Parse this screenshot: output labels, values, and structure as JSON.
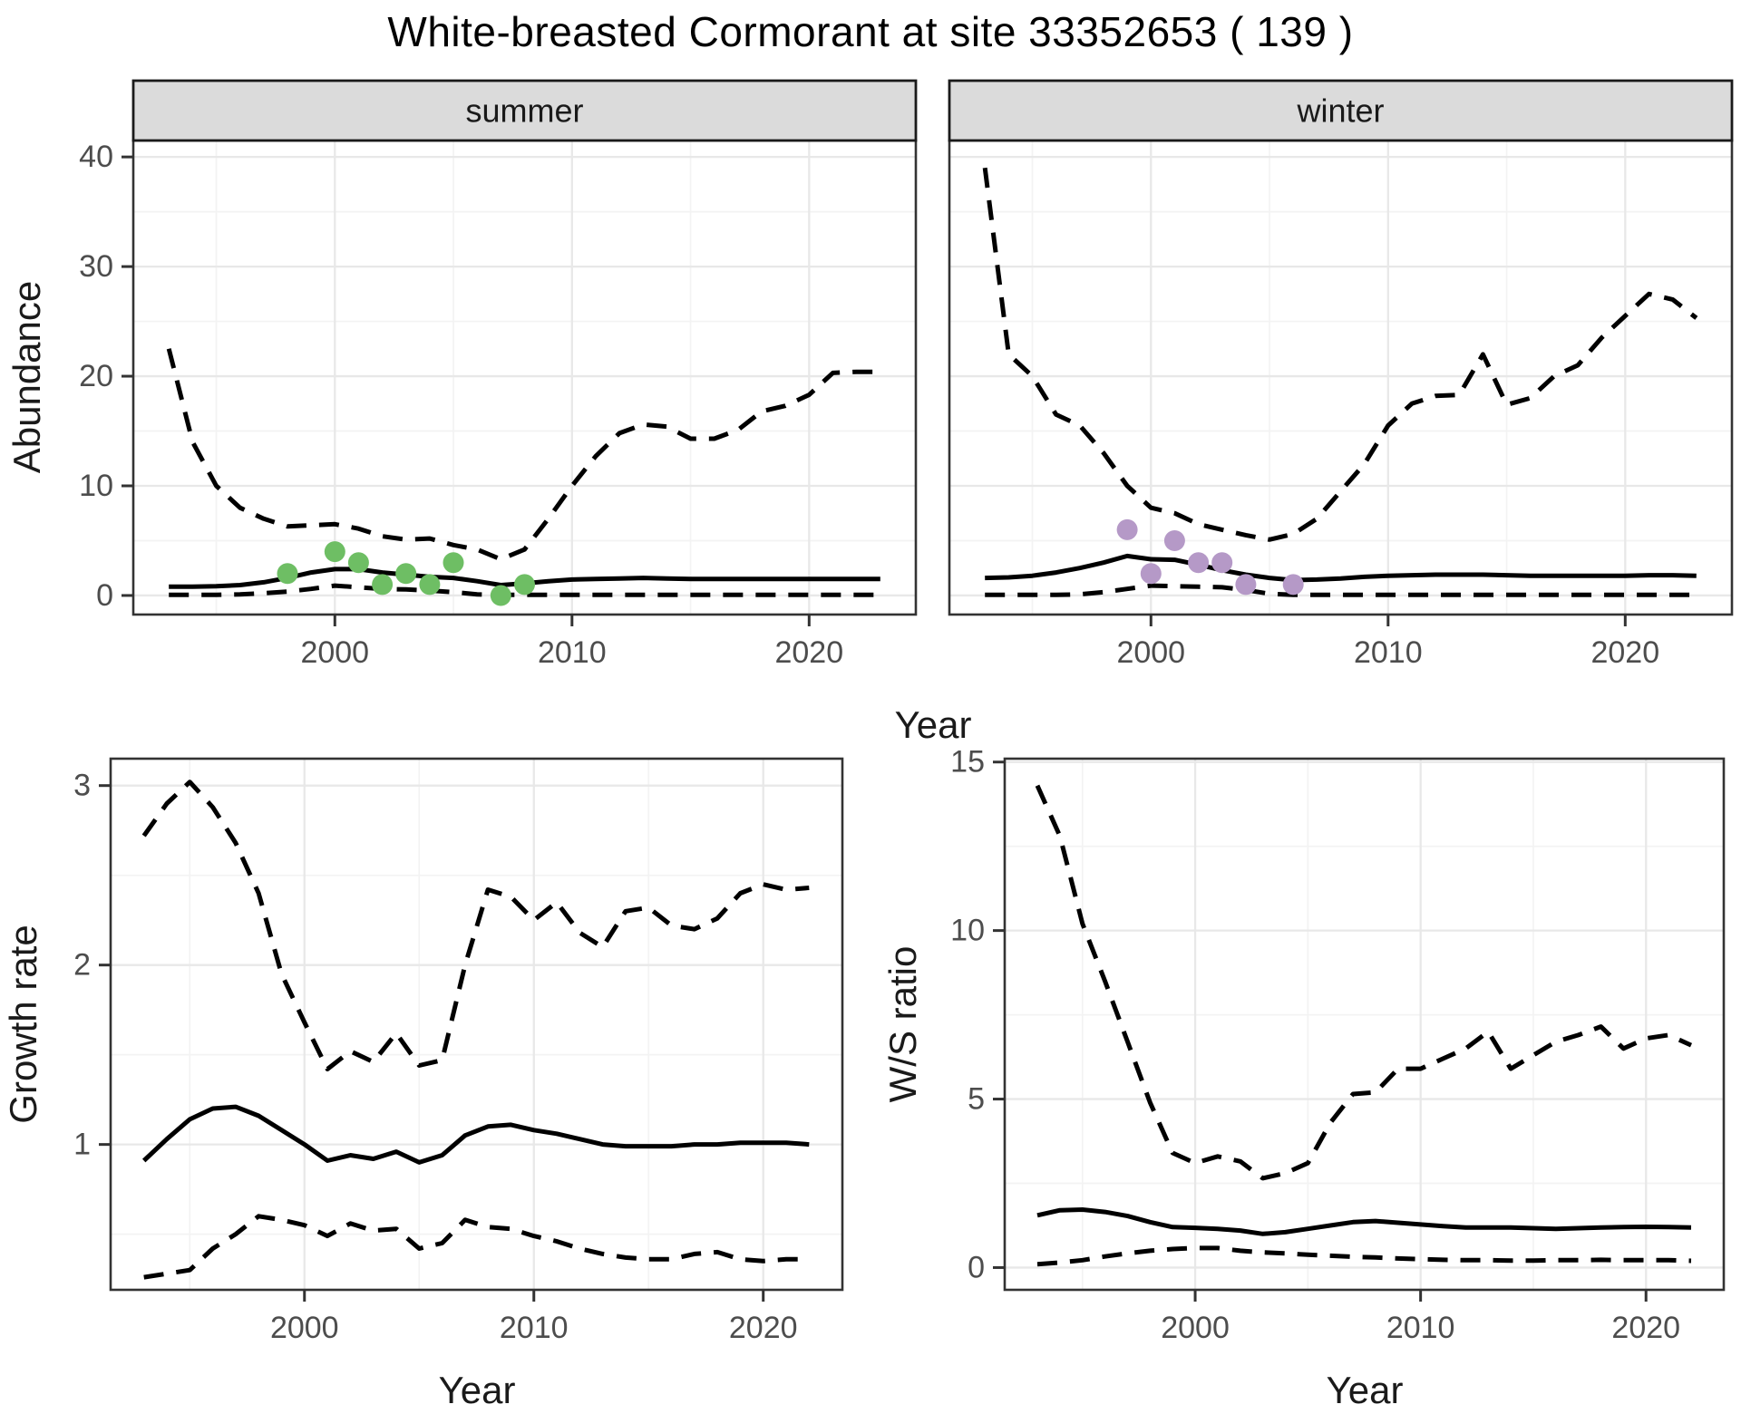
{
  "title": "White-breasted Cormorant at site 33352653 ( 139 )",
  "colors": {
    "summer_points": "#6EBE64",
    "winter_points": "#B599C7",
    "line": "#000000",
    "strip_bg": "#DBDBDB",
    "strip_border": "#1A1A1A",
    "panel_border": "#333333",
    "grid_major": "#E8E8E8",
    "grid_minor": "#F3F3F3",
    "tick_text": "#4D4D4D",
    "text": "#1A1A1A"
  },
  "chart_data": [
    {
      "type": "line",
      "facet_label": "summer",
      "xlabel": "Year",
      "ylabel": "Abundance",
      "xlim": [
        1991.5,
        2024.5
      ],
      "ylim": [
        -1.74,
        41.5
      ],
      "xticks": {
        "major": [
          2000,
          2010,
          2020
        ],
        "minor": [
          1995,
          2005,
          2015
        ]
      },
      "yticks": {
        "major": [
          0,
          10,
          20,
          30,
          40
        ],
        "minor": [
          5,
          15,
          25,
          35
        ]
      },
      "x": [
        1993,
        1994,
        1995,
        1996,
        1997,
        1998,
        1999,
        2000,
        2001,
        2002,
        2003,
        2004,
        2005,
        2006,
        2007,
        2008,
        2009,
        2010,
        2011,
        2012,
        2013,
        2014,
        2015,
        2016,
        2017,
        2018,
        2019,
        2020,
        2021,
        2022,
        2023
      ],
      "series": [
        {
          "name": "fit",
          "line_style": "solid",
          "values": [
            0.8,
            0.8,
            0.85,
            0.95,
            1.2,
            1.6,
            2.1,
            2.4,
            2.4,
            2.1,
            1.9,
            1.7,
            1.6,
            1.3,
            0.95,
            1.1,
            1.3,
            1.45,
            1.5,
            1.55,
            1.6,
            1.55,
            1.5,
            1.5,
            1.5,
            1.5,
            1.5,
            1.5,
            1.5,
            1.5,
            1.5
          ]
        },
        {
          "name": "upper_ci",
          "line_style": "dashed",
          "values": [
            22.5,
            14,
            10,
            8,
            7,
            6.3,
            6.4,
            6.5,
            6.1,
            5.4,
            5.1,
            5.2,
            4.6,
            4.2,
            3.3,
            4.2,
            7,
            10,
            12.7,
            14.8,
            15.6,
            15.4,
            14.3,
            14.3,
            15.1,
            16.8,
            17.3,
            18.3,
            20.3,
            20.4,
            20.4
          ]
        },
        {
          "name": "lower_ci",
          "line_style": "dashed",
          "values": [
            0.05,
            0.05,
            0.05,
            0.1,
            0.2,
            0.35,
            0.6,
            0.9,
            0.75,
            0.6,
            0.55,
            0.45,
            0.3,
            0.1,
            0.05,
            0.05,
            0.05,
            0.05,
            0.05,
            0.05,
            0.05,
            0.05,
            0.05,
            0.05,
            0.05,
            0.05,
            0.05,
            0.05,
            0.05,
            0.05,
            0.05
          ]
        }
      ],
      "points": {
        "name": "summer observations",
        "color": "#6EBE64",
        "xy": [
          [
            1998,
            2
          ],
          [
            2000,
            4
          ],
          [
            2001,
            3
          ],
          [
            2002,
            1
          ],
          [
            2003,
            2
          ],
          [
            2004,
            1
          ],
          [
            2005,
            3
          ],
          [
            2007,
            0
          ],
          [
            2008,
            1
          ]
        ]
      }
    },
    {
      "type": "line",
      "facet_label": "winter",
      "xlabel": "Year",
      "ylabel": "Abundance",
      "xlim": [
        1991.5,
        2024.5
      ],
      "ylim": [
        -1.74,
        41.5
      ],
      "xticks": {
        "major": [
          2000,
          2010,
          2020
        ],
        "minor": [
          1995,
          2005,
          2015
        ]
      },
      "yticks": {
        "major": [
          0,
          10,
          20,
          30,
          40
        ],
        "minor": [
          5,
          15,
          25,
          35
        ]
      },
      "x": [
        1993,
        1994,
        1995,
        1996,
        1997,
        1998,
        1999,
        2000,
        2001,
        2002,
        2003,
        2004,
        2005,
        2006,
        2007,
        2008,
        2009,
        2010,
        2011,
        2012,
        2013,
        2014,
        2015,
        2016,
        2017,
        2018,
        2019,
        2020,
        2021,
        2022,
        2023
      ],
      "series": [
        {
          "name": "fit",
          "line_style": "solid",
          "values": [
            1.6,
            1.65,
            1.8,
            2.1,
            2.5,
            3.0,
            3.6,
            3.3,
            3.25,
            2.8,
            2.3,
            1.9,
            1.6,
            1.4,
            1.45,
            1.55,
            1.7,
            1.8,
            1.85,
            1.9,
            1.9,
            1.9,
            1.85,
            1.8,
            1.8,
            1.8,
            1.8,
            1.8,
            1.85,
            1.85,
            1.8
          ]
        },
        {
          "name": "upper_ci",
          "line_style": "dashed",
          "values": [
            39,
            22,
            20,
            16.5,
            15.5,
            13,
            10,
            8,
            7.5,
            6.5,
            6,
            5.5,
            5.1,
            5.6,
            7,
            9.5,
            12,
            15.5,
            17.5,
            18.2,
            18.3,
            22,
            17.4,
            18,
            20,
            21,
            23.5,
            25.5,
            27.5,
            27,
            25.3
          ]
        },
        {
          "name": "lower_ci",
          "line_style": "dashed",
          "values": [
            0.05,
            0.05,
            0.05,
            0.05,
            0.1,
            0.3,
            0.6,
            0.9,
            0.85,
            0.8,
            0.75,
            0.5,
            0.15,
            0.05,
            0.05,
            0.05,
            0.05,
            0.05,
            0.05,
            0.05,
            0.05,
            0.05,
            0.05,
            0.05,
            0.05,
            0.05,
            0.05,
            0.05,
            0.05,
            0.05,
            0.05
          ]
        }
      ],
      "points": {
        "name": "winter observations",
        "color": "#B599C7",
        "xy": [
          [
            1999,
            6
          ],
          [
            2000,
            2
          ],
          [
            2001,
            5
          ],
          [
            2002,
            3
          ],
          [
            2003,
            3
          ],
          [
            2004,
            1
          ],
          [
            2006,
            1
          ]
        ]
      }
    },
    {
      "type": "line",
      "facet_label": "",
      "xlabel": "Year",
      "ylabel": "Growth rate",
      "xlim": [
        1991.55,
        2023.45
      ],
      "ylim": [
        0.19,
        3.15
      ],
      "xticks": {
        "major": [
          2000,
          2010,
          2020
        ],
        "minor": [
          1995,
          2005,
          2015
        ]
      },
      "yticks": {
        "major": [
          1,
          2,
          3
        ],
        "minor": [
          0.5,
          1.5,
          2.5
        ]
      },
      "x": [
        1993,
        1994,
        1995,
        1996,
        1997,
        1998,
        1999,
        2000,
        2001,
        2002,
        2003,
        2004,
        2005,
        2006,
        2007,
        2008,
        2009,
        2010,
        2011,
        2012,
        2013,
        2014,
        2015,
        2016,
        2017,
        2018,
        2019,
        2020,
        2021,
        2022
      ],
      "series": [
        {
          "name": "fit",
          "line_style": "solid",
          "values": [
            0.91,
            1.03,
            1.14,
            1.2,
            1.21,
            1.16,
            1.08,
            1.0,
            0.91,
            0.94,
            0.92,
            0.96,
            0.9,
            0.94,
            1.05,
            1.1,
            1.11,
            1.08,
            1.06,
            1.03,
            1.0,
            0.99,
            0.99,
            0.99,
            1.0,
            1.0,
            1.01,
            1.01,
            1.01,
            1.0
          ]
        },
        {
          "name": "upper_ci",
          "line_style": "dashed",
          "values": [
            2.72,
            2.9,
            3.02,
            2.88,
            2.68,
            2.4,
            1.95,
            1.68,
            1.42,
            1.52,
            1.46,
            1.62,
            1.44,
            1.47,
            2.0,
            2.42,
            2.38,
            2.25,
            2.35,
            2.18,
            2.1,
            2.3,
            2.32,
            2.22,
            2.2,
            2.26,
            2.4,
            2.45,
            2.42,
            2.43
          ]
        },
        {
          "name": "lower_ci",
          "line_style": "dashed",
          "values": [
            0.26,
            0.28,
            0.3,
            0.42,
            0.5,
            0.6,
            0.58,
            0.55,
            0.49,
            0.56,
            0.52,
            0.53,
            0.42,
            0.45,
            0.58,
            0.54,
            0.53,
            0.49,
            0.46,
            0.42,
            0.39,
            0.37,
            0.36,
            0.36,
            0.39,
            0.4,
            0.36,
            0.35,
            0.36,
            0.36
          ]
        }
      ]
    },
    {
      "type": "line",
      "facet_label": "",
      "xlabel": "Year",
      "ylabel": "W/S ratio",
      "xlim": [
        1991.55,
        2023.45
      ],
      "ylim": [
        -0.66,
        15.1
      ],
      "xticks": {
        "major": [
          2000,
          2010,
          2020
        ],
        "minor": [
          1995,
          2005,
          2015
        ]
      },
      "yticks": {
        "major": [
          0,
          5,
          10,
          15
        ],
        "minor": [
          2.5,
          7.5,
          12.5
        ]
      },
      "x": [
        1993,
        1994,
        1995,
        1996,
        1997,
        1998,
        1999,
        2000,
        2001,
        2002,
        2003,
        2004,
        2005,
        2006,
        2007,
        2008,
        2009,
        2010,
        2011,
        2012,
        2013,
        2014,
        2015,
        2016,
        2017,
        2018,
        2019,
        2020,
        2021,
        2022
      ],
      "series": [
        {
          "name": "fit",
          "line_style": "solid",
          "values": [
            1.55,
            1.7,
            1.72,
            1.65,
            1.53,
            1.35,
            1.2,
            1.18,
            1.15,
            1.1,
            1.0,
            1.05,
            1.15,
            1.25,
            1.35,
            1.38,
            1.33,
            1.28,
            1.23,
            1.19,
            1.19,
            1.19,
            1.17,
            1.15,
            1.17,
            1.19,
            1.2,
            1.21,
            1.2,
            1.19
          ]
        },
        {
          "name": "upper_ci",
          "line_style": "dashed",
          "values": [
            14.3,
            12.8,
            10.2,
            8.5,
            6.7,
            4.9,
            3.4,
            3.1,
            3.3,
            3.15,
            2.65,
            2.8,
            3.1,
            4.3,
            5.15,
            5.2,
            5.9,
            5.9,
            6.2,
            6.5,
            7.0,
            5.9,
            6.3,
            6.7,
            6.9,
            7.15,
            6.5,
            6.8,
            6.9,
            6.6
          ]
        },
        {
          "name": "lower_ci",
          "line_style": "dashed",
          "values": [
            0.1,
            0.15,
            0.22,
            0.33,
            0.42,
            0.5,
            0.55,
            0.58,
            0.58,
            0.5,
            0.45,
            0.42,
            0.38,
            0.35,
            0.32,
            0.3,
            0.27,
            0.25,
            0.23,
            0.22,
            0.22,
            0.21,
            0.21,
            0.22,
            0.22,
            0.23,
            0.22,
            0.22,
            0.22,
            0.2
          ]
        }
      ]
    }
  ]
}
